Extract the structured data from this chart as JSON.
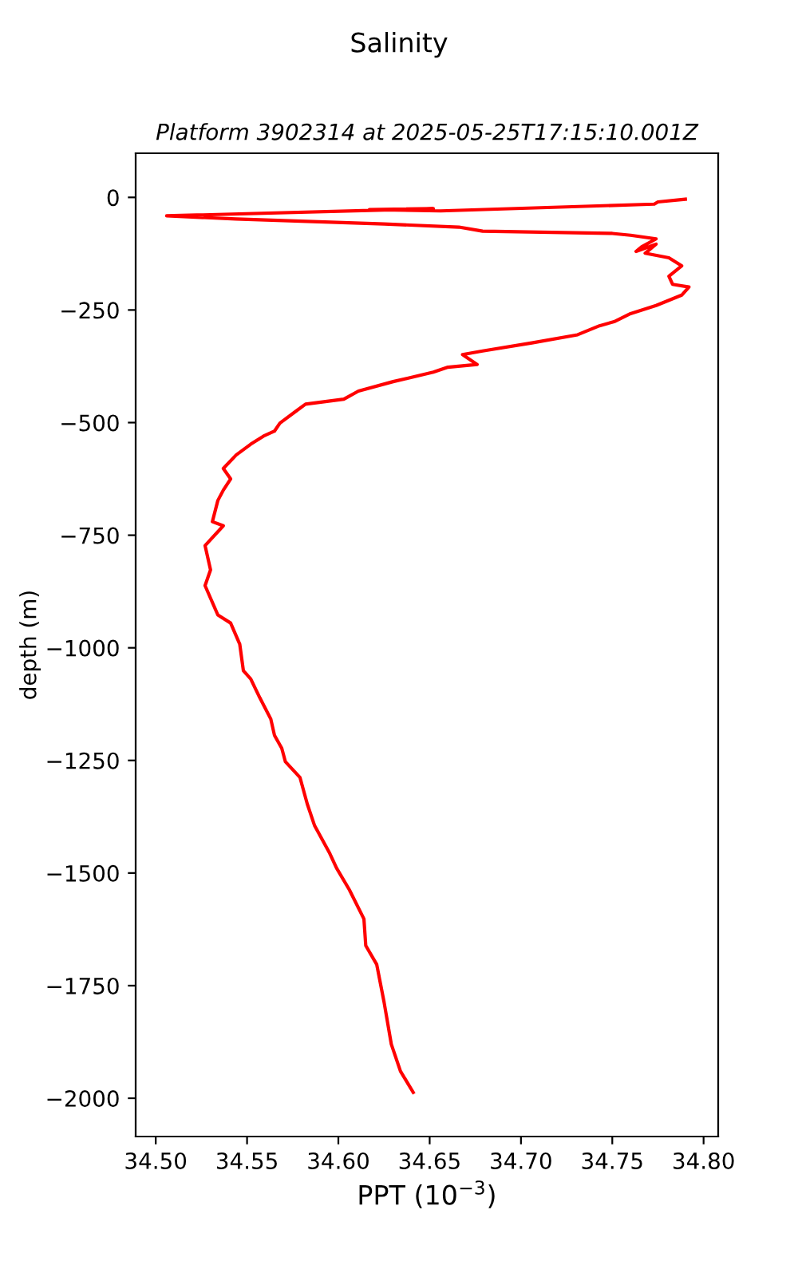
{
  "chart_data": {
    "type": "line",
    "title": "Salinity",
    "subtitle": "Platform 3902314 at 2025-05-25T17:15:10.001Z",
    "xlabel": "PPT (10$^{−3}$)",
    "ylabel": "depth (m)",
    "series": [
      {
        "color": "#ff0000",
        "x": [
          34.79,
          34.775,
          34.773,
          34.656,
          34.617,
          34.652,
          34.506,
          34.544,
          34.625,
          34.666,
          34.679,
          34.75,
          34.76,
          34.774,
          34.766,
          34.763,
          34.774,
          34.768,
          34.781,
          34.788,
          34.781,
          34.783,
          34.792,
          34.788,
          34.774,
          34.76,
          34.751,
          34.743,
          34.731,
          34.706,
          34.679,
          34.668,
          34.676,
          34.66,
          34.652,
          34.63,
          34.611,
          34.603,
          34.582,
          34.576,
          34.568,
          34.565,
          34.559,
          34.552,
          34.544,
          34.537,
          34.541,
          34.537,
          34.534,
          34.531,
          34.537,
          34.527,
          34.53,
          34.527,
          34.534,
          34.541,
          34.546,
          34.548,
          34.552,
          34.557,
          34.563,
          34.565,
          34.569,
          34.571,
          34.579,
          34.583,
          34.587,
          34.595,
          34.599,
          34.606,
          34.614,
          34.615,
          34.621,
          34.625,
          34.629,
          34.634,
          34.641
        ],
        "values": [
          -4,
          -10,
          -15,
          -30,
          -27,
          -25,
          -41,
          -48,
          -59,
          -66,
          -75,
          -80,
          -84,
          -92,
          -110,
          -120,
          -104,
          -124,
          -134,
          -152,
          -175,
          -193,
          -199,
          -217,
          -240,
          -258,
          -276,
          -285,
          -305,
          -323,
          -341,
          -349,
          -371,
          -377,
          -388,
          -409,
          -430,
          -448,
          -459,
          -477,
          -501,
          -519,
          -530,
          -548,
          -572,
          -602,
          -625,
          -650,
          -673,
          -720,
          -729,
          -773,
          -827,
          -862,
          -927,
          -945,
          -992,
          -1051,
          -1069,
          -1111,
          -1158,
          -1194,
          -1223,
          -1253,
          -1288,
          -1347,
          -1395,
          -1454,
          -1489,
          -1537,
          -1602,
          -1661,
          -1703,
          -1786,
          -1880,
          -1940,
          -1987
        ]
      }
    ],
    "xlim": [
      34.489,
      34.808
    ],
    "ylim": [
      -2085,
      98
    ],
    "xticks": [
      {
        "value": 34.5,
        "label": "34.50"
      },
      {
        "value": 34.55,
        "label": "34.55"
      },
      {
        "value": 34.6,
        "label": "34.60"
      },
      {
        "value": 34.65,
        "label": "34.65"
      },
      {
        "value": 34.7,
        "label": "34.70"
      },
      {
        "value": 34.75,
        "label": "34.75"
      },
      {
        "value": 34.8,
        "label": "34.80"
      }
    ],
    "yticks": [
      {
        "value": -2000,
        "label": "−2000"
      },
      {
        "value": -1750,
        "label": "−1750"
      },
      {
        "value": -1500,
        "label": "−1500"
      },
      {
        "value": -1250,
        "label": "−1250"
      },
      {
        "value": -1000,
        "label": "−1000"
      },
      {
        "value": -750,
        "label": "−750"
      },
      {
        "value": -500,
        "label": "−500"
      },
      {
        "value": -250,
        "label": "−250"
      },
      0
    ],
    "grid": false,
    "legend": false
  }
}
